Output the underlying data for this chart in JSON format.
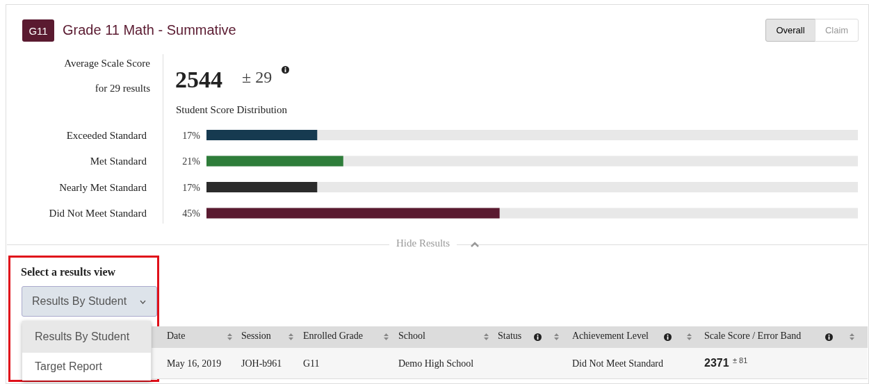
{
  "chart_data": {
    "type": "bar",
    "orientation": "horizontal",
    "title": "Grade 11 Math - Summative",
    "subtitle": "Student Score Distribution",
    "categories": [
      "Exceeded Standard",
      "Met Standard",
      "Nearly Met Standard",
      "Did Not Meet Standard"
    ],
    "values": [
      17,
      21,
      17,
      45
    ],
    "colors": [
      "#163a50",
      "#2e7d3a",
      "#2b2b2b",
      "#5a1a30"
    ],
    "value_labels": [
      "17%",
      "21%",
      "17%",
      "45%"
    ],
    "xlim": [
      0,
      100
    ],
    "tick_labels": "y",
    "annotations": [
      "G11",
      "Overall",
      "Claim",
      "Average Scale Score",
      "for 29 results",
      "2544",
      "± 29",
      "Hide Results",
      "Select a results view",
      "Results By Student",
      "Results By Student",
      "Target Report",
      "Date",
      "Session",
      "Enrolled Grade",
      "School",
      "Status",
      "Achievement Level",
      "Scale Score / Error Band",
      "May 16, 2019",
      "JOH-b961",
      "G11",
      "Demo High School",
      "Did Not Meet Standard",
      "2371",
      "± 81"
    ]
  }
}
